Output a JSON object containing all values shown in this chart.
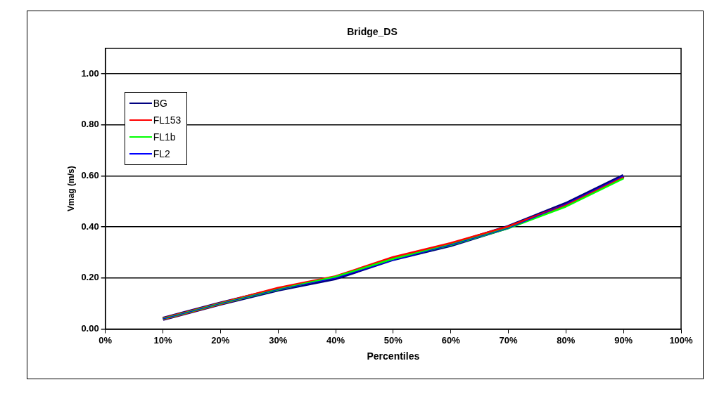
{
  "chart_data": {
    "type": "line",
    "title": "Bridge_DS",
    "xlabel": "Percentiles",
    "ylabel": "Vmag (m/s)",
    "x": [
      10,
      20,
      30,
      40,
      50,
      60,
      70,
      80,
      90
    ],
    "xlim": [
      0,
      100
    ],
    "xticks": [
      {
        "value": 0,
        "label": "0%"
      },
      {
        "value": 10,
        "label": "10%"
      },
      {
        "value": 20,
        "label": "20%"
      },
      {
        "value": 30,
        "label": "30%"
      },
      {
        "value": 40,
        "label": "40%"
      },
      {
        "value": 50,
        "label": "50%"
      },
      {
        "value": 60,
        "label": "60%"
      },
      {
        "value": 70,
        "label": "70%"
      },
      {
        "value": 80,
        "label": "80%"
      },
      {
        "value": 90,
        "label": "90%"
      },
      {
        "value": 100,
        "label": "100%"
      }
    ],
    "ylim": [
      0,
      1.1
    ],
    "yticks": [
      {
        "value": 0,
        "label": "0.00"
      },
      {
        "value": 0.2,
        "label": "0.20"
      },
      {
        "value": 0.4,
        "label": "0.40"
      },
      {
        "value": 0.6,
        "label": "0.60"
      },
      {
        "value": 0.8,
        "label": "0.80"
      },
      {
        "value": 1,
        "label": "1.00"
      }
    ],
    "series": [
      {
        "name": "BG",
        "color": "#000080",
        "values": [
          0.04,
          0.1,
          0.155,
          0.2,
          0.275,
          0.33,
          0.4,
          0.49,
          0.6
        ]
      },
      {
        "name": "FL153",
        "color": "#ff0000",
        "values": [
          0.04,
          0.1,
          0.16,
          0.205,
          0.28,
          0.335,
          0.4,
          0.485,
          0.595
        ]
      },
      {
        "name": "FL1b",
        "color": "#00ff00",
        "values": [
          0.04,
          0.1,
          0.155,
          0.205,
          0.275,
          0.33,
          0.395,
          0.48,
          0.59
        ]
      },
      {
        "name": "FL2",
        "color": "#0000ff",
        "values": [
          0.04,
          0.1,
          0.155,
          0.2,
          0.27,
          0.33,
          0.395,
          0.49,
          0.6
        ]
      }
    ],
    "grid": "y",
    "legend": "top left",
    "marker": "none",
    "line_style": "solid"
  }
}
